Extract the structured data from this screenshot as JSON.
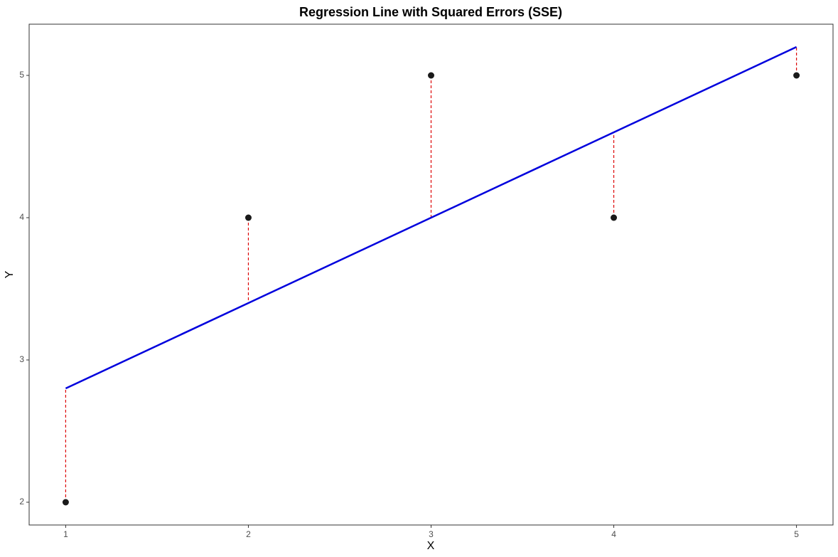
{
  "chart_data": {
    "type": "scatter",
    "title": "Regression Line with Squared Errors (SSE)",
    "x_label": "X",
    "y_label": "Y",
    "x": [
      1,
      2,
      3,
      4,
      5
    ],
    "values": [
      2,
      4,
      5,
      4,
      5
    ],
    "fitted": [
      2.8,
      3.4,
      4.0,
      4.6,
      5.2
    ],
    "point_color": "#1a1a1a",
    "line_color": "#0000dd",
    "residual_color": "#dd0000",
    "xlim": [
      0.8,
      5.2
    ],
    "ylim": [
      1.84,
      5.36
    ],
    "xticks": [
      1,
      2,
      3,
      4,
      5
    ],
    "yticks": [
      2,
      3,
      4,
      5
    ],
    "grid": false
  }
}
